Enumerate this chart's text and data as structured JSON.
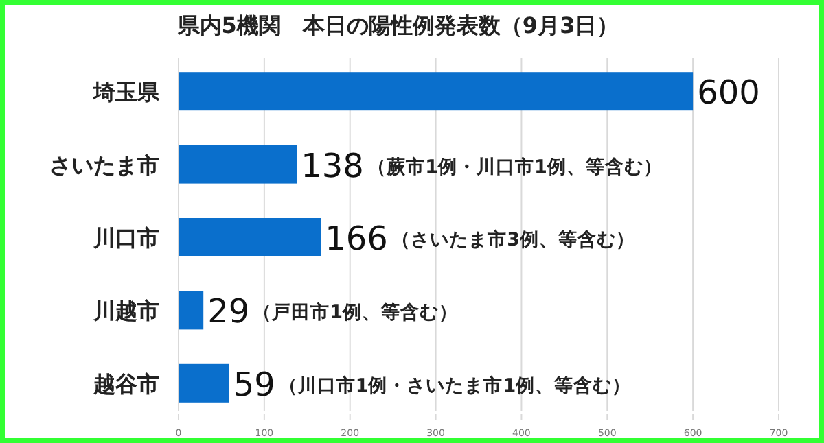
{
  "chart_data": {
    "type": "bar",
    "orientation": "horizontal",
    "title": "県内5機関　本日の陽性例発表数（9月3日）",
    "categories": [
      "埼玉県",
      "さいたま市",
      "川口市",
      "川越市",
      "越谷市"
    ],
    "values": [
      600,
      138,
      166,
      29,
      59
    ],
    "color": "#0a6fcc",
    "data_labels": true,
    "xlim": [
      0,
      700
    ],
    "xticks": [
      0,
      100,
      200,
      300,
      400,
      500,
      600,
      700
    ],
    "grid": "x",
    "annotations": [
      "（蕨市1例・川口市1例、等含む）",
      "（さいたま市3例、等含む）",
      "（戸田市1例、等含む）",
      "（川口市1例・さいたま市1例、等含む）"
    ]
  }
}
